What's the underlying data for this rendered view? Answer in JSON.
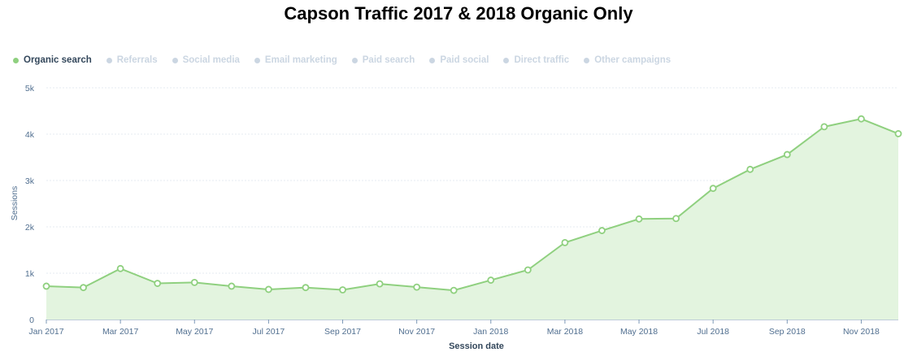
{
  "title": "Capson Traffic 2017 & 2018 Organic Only",
  "legend": [
    {
      "label": "Organic search",
      "active": true,
      "color": "#8fd07f"
    },
    {
      "label": "Referrals",
      "active": false,
      "color": "#cbd6e2"
    },
    {
      "label": "Social media",
      "active": false,
      "color": "#cbd6e2"
    },
    {
      "label": "Email marketing",
      "active": false,
      "color": "#cbd6e2"
    },
    {
      "label": "Paid search",
      "active": false,
      "color": "#cbd6e2"
    },
    {
      "label": "Paid social",
      "active": false,
      "color": "#cbd6e2"
    },
    {
      "label": "Direct traffic",
      "active": false,
      "color": "#cbd6e2"
    },
    {
      "label": "Other campaigns",
      "active": false,
      "color": "#cbd6e2"
    }
  ],
  "chart_data": {
    "type": "area",
    "title": "Capson Traffic 2017 & 2018 Organic Only",
    "xlabel": "Session date",
    "ylabel": "Sessions",
    "ylim": [
      0,
      5000
    ],
    "yticks": [
      0,
      1000,
      2000,
      3000,
      4000,
      5000
    ],
    "ytick_labels": [
      "0",
      "1k",
      "2k",
      "3k",
      "4k",
      "5k"
    ],
    "grid": true,
    "legend_position": "top-left",
    "x": [
      "Jan 2017",
      "Feb 2017",
      "Mar 2017",
      "Apr 2017",
      "May 2017",
      "Jun 2017",
      "Jul 2017",
      "Aug 2017",
      "Sep 2017",
      "Oct 2017",
      "Nov 2017",
      "Dec 2017",
      "Jan 2018",
      "Feb 2018",
      "Mar 2018",
      "Apr 2018",
      "May 2018",
      "Jun 2018",
      "Jul 2018",
      "Aug 2018",
      "Sep 2018",
      "Oct 2018",
      "Nov 2018",
      "Dec 2018"
    ],
    "xtick_labels": [
      "Jan 2017",
      "",
      "Mar 2017",
      "",
      "May 2017",
      "",
      "Jul 2017",
      "",
      "Sep 2017",
      "",
      "Nov 2017",
      "",
      "Jan 2018",
      "",
      "Mar 2018",
      "",
      "May 2018",
      "",
      "Jul 2018",
      "",
      "Sep 2018",
      "",
      "Nov 2018",
      ""
    ],
    "series": [
      {
        "name": "Organic search",
        "color": "#8fd07f",
        "fill": "#e3f4df",
        "values": [
          720,
          690,
          1100,
          780,
          800,
          720,
          650,
          690,
          640,
          770,
          700,
          630,
          850,
          1070,
          1660,
          1920,
          2170,
          2180,
          2830,
          3240,
          3560,
          4160,
          4330,
          4010
        ]
      }
    ]
  }
}
